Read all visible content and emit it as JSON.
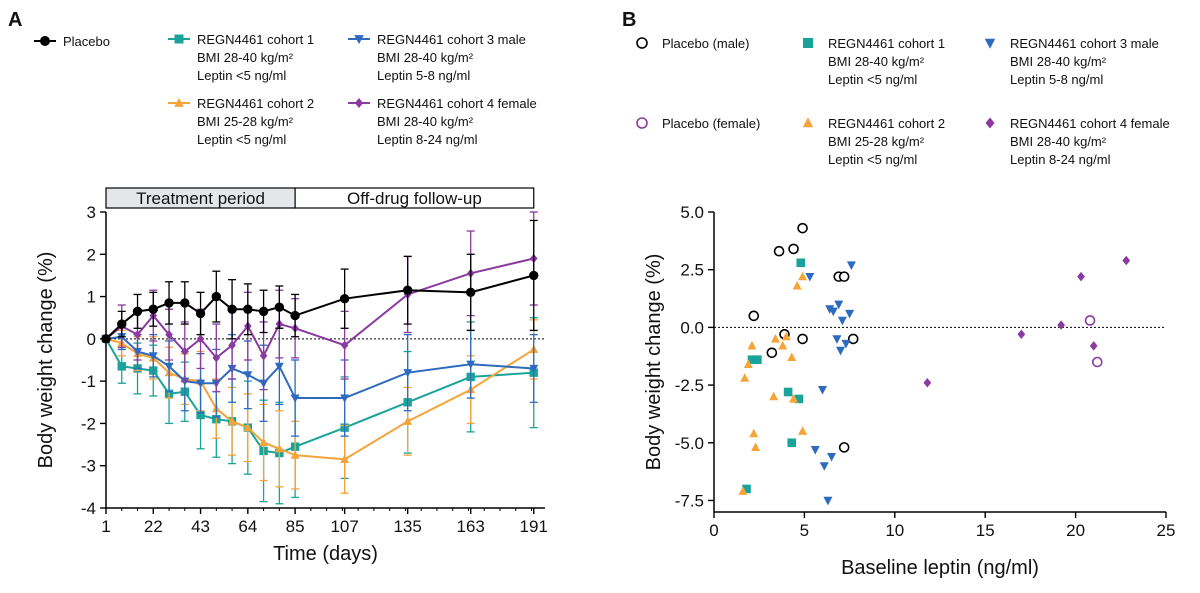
{
  "colors": {
    "placebo": "#000000",
    "cohort1": "#1aa39a",
    "cohort2": "#f5a43a",
    "cohort3": "#2e6bbf",
    "cohort4": "#8b3aa0",
    "placebo_female": "#8b3aa0"
  },
  "panel_a": {
    "label": "A",
    "legend": [
      {
        "key": "placebo",
        "lines": [
          "Placebo"
        ]
      },
      {
        "key": "cohort1",
        "lines": [
          "REGN4461 cohort 1",
          "BMI 28-40 kg/m²",
          "Leptin <5 ng/ml"
        ]
      },
      {
        "key": "cohort3",
        "lines": [
          "REGN4461 cohort 3 male",
          "BMI 28-40 kg/m²",
          "Leptin 5-8 ng/ml"
        ]
      },
      {
        "key": "cohort2",
        "lines": [
          "REGN4461 cohort 2",
          "BMI 25-28 kg/m²",
          "Leptin <5 ng/ml"
        ]
      },
      {
        "key": "cohort4",
        "lines": [
          "REGN4461 cohort 4 female",
          "BMI 28-40 kg/m²",
          "Leptin 8-24 ng/ml"
        ]
      }
    ],
    "period_labels": {
      "treatment": "Treatment period",
      "followup": "Off-drug follow-up"
    }
  },
  "panel_b": {
    "label": "B",
    "legend": [
      {
        "key": "placebo",
        "marker": "circle-open",
        "lines": [
          "Placebo (male)"
        ]
      },
      {
        "key": "cohort1",
        "marker": "square",
        "lines": [
          "REGN4461 cohort 1",
          "BMI 28-40 kg/m²",
          "Leptin <5 ng/ml"
        ]
      },
      {
        "key": "cohort3",
        "marker": "triangle-down",
        "lines": [
          "REGN4461 cohort 3 male",
          "BMI 28-40 kg/m²",
          "Leptin 5-8 ng/ml"
        ]
      },
      {
        "key": "placebo_female",
        "marker": "circle-open",
        "lines": [
          "Placebo (female)"
        ]
      },
      {
        "key": "cohort2",
        "marker": "triangle-up",
        "lines": [
          "REGN4461 cohort 2",
          "BMI 25-28 kg/m²",
          "Leptin <5 ng/ml"
        ]
      },
      {
        "key": "cohort4",
        "marker": "diamond",
        "lines": [
          "REGN4461 cohort 4 female",
          "BMI 28-40 kg/m²",
          "Leptin 8-24 ng/ml"
        ]
      }
    ]
  },
  "chart_data": [
    {
      "type": "line",
      "panel": "A",
      "title": "",
      "xlabel": "Time (days)",
      "ylabel": "Body weight change (%)",
      "xlim": [
        1,
        196
      ],
      "ylim": [
        -4,
        3
      ],
      "xticks": [
        1,
        22,
        43,
        64,
        85,
        107,
        135,
        163,
        191
      ],
      "yticks": [
        -4,
        -3,
        -2,
        -1,
        0,
        1,
        2,
        3
      ],
      "reference_line": 0,
      "periods": [
        {
          "label": "Treatment period",
          "from": 1,
          "to": 85
        },
        {
          "label": "Off-drug follow-up",
          "from": 85,
          "to": 191
        }
      ],
      "series": [
        {
          "name": "Placebo",
          "color_key": "placebo",
          "marker": "circle",
          "x": [
            1,
            8,
            15,
            22,
            29,
            36,
            43,
            50,
            57,
            64,
            71,
            78,
            85,
            107,
            135,
            163,
            191
          ],
          "y": [
            0,
            0.35,
            0.65,
            0.7,
            0.85,
            0.85,
            0.6,
            1.0,
            0.7,
            0.7,
            0.65,
            0.75,
            0.55,
            0.95,
            1.15,
            1.1,
            1.5
          ],
          "err": [
            0,
            0.3,
            0.4,
            0.4,
            0.5,
            0.5,
            0.5,
            0.6,
            0.7,
            0.6,
            0.5,
            0.5,
            0.5,
            0.7,
            0.8,
            0.9,
            1.3
          ]
        },
        {
          "name": "REGN4461 cohort 1",
          "color_key": "cohort1",
          "marker": "square",
          "x": [
            1,
            8,
            15,
            22,
            29,
            36,
            43,
            50,
            57,
            64,
            71,
            78,
            85,
            107,
            135,
            163,
            191
          ],
          "y": [
            0,
            -0.65,
            -0.7,
            -0.75,
            -1.3,
            -1.25,
            -1.8,
            -1.9,
            -1.95,
            -2.1,
            -2.65,
            -2.7,
            -2.55,
            -2.1,
            -1.5,
            -0.9,
            -0.8
          ],
          "err": [
            0,
            0.4,
            0.6,
            0.6,
            0.7,
            0.7,
            0.8,
            0.9,
            1.0,
            1.1,
            1.2,
            1.2,
            1.2,
            1.2,
            1.2,
            1.3,
            1.3
          ]
        },
        {
          "name": "REGN4461 cohort 2",
          "color_key": "cohort2",
          "marker": "triangle-up",
          "x": [
            1,
            8,
            15,
            22,
            29,
            36,
            43,
            50,
            57,
            64,
            71,
            78,
            85,
            107,
            135,
            163,
            191
          ],
          "y": [
            0,
            -0.1,
            -0.35,
            -0.45,
            -0.8,
            -0.95,
            -1.0,
            -1.65,
            -1.95,
            -2.1,
            -2.45,
            -2.6,
            -2.75,
            -2.85,
            -1.95,
            -1.2,
            -0.25
          ],
          "err": [
            0,
            0.3,
            0.4,
            0.5,
            0.6,
            0.6,
            0.7,
            0.7,
            0.8,
            0.8,
            0.9,
            0.9,
            0.8,
            0.8,
            0.8,
            0.8,
            0.7
          ]
        },
        {
          "name": "REGN4461 cohort 3 male",
          "color_key": "cohort3",
          "marker": "triangle-down",
          "x": [
            1,
            8,
            15,
            22,
            29,
            36,
            43,
            50,
            57,
            64,
            71,
            78,
            85,
            107,
            135,
            163,
            191
          ],
          "y": [
            0,
            0.05,
            -0.3,
            -0.4,
            -0.65,
            -1.0,
            -1.05,
            -1.05,
            -0.7,
            -0.85,
            -1.05,
            -0.65,
            -1.4,
            -1.4,
            -0.8,
            -0.6,
            -0.7
          ],
          "err": [
            0,
            0.3,
            0.4,
            0.5,
            0.6,
            0.7,
            0.7,
            0.8,
            0.8,
            0.8,
            0.9,
            0.9,
            0.9,
            0.9,
            0.9,
            0.8,
            0.8
          ]
        },
        {
          "name": "REGN4461 cohort 4 female",
          "color_key": "cohort4",
          "marker": "diamond",
          "x": [
            1,
            8,
            15,
            22,
            29,
            36,
            43,
            50,
            57,
            64,
            71,
            78,
            85,
            107,
            135,
            163,
            191
          ],
          "y": [
            0,
            0.3,
            0.1,
            0.55,
            0.1,
            -0.3,
            0.0,
            -0.45,
            -0.15,
            0.3,
            -0.4,
            0.35,
            0.25,
            -0.15,
            1.05,
            1.55,
            1.9
          ],
          "err": [
            0,
            0.5,
            0.6,
            0.6,
            0.6,
            0.7,
            0.7,
            0.8,
            0.8,
            0.8,
            0.8,
            0.8,
            0.7,
            0.8,
            0.9,
            1.0,
            1.1
          ]
        }
      ]
    },
    {
      "type": "scatter",
      "panel": "B",
      "title": "",
      "xlabel": "Baseline leptin (ng/ml)",
      "ylabel": "Body weight change (%)",
      "xlim": [
        0,
        25
      ],
      "ylim": [
        -8,
        5
      ],
      "xticks": [
        0,
        5,
        10,
        15,
        20,
        25
      ],
      "yticks": [
        -7.5,
        -5.0,
        -2.5,
        0.0,
        2.5,
        5.0
      ],
      "ytick_labels": [
        "-7.5",
        "-5.0",
        "-2.5",
        "0.0",
        "2.5",
        "5.0"
      ],
      "reference_line": 0,
      "series": [
        {
          "name": "Placebo (male)",
          "color_key": "placebo",
          "marker": "circle-open",
          "points": [
            [
              2.2,
              0.5
            ],
            [
              3.2,
              -1.1
            ],
            [
              3.6,
              3.3
            ],
            [
              3.9,
              -0.3
            ],
            [
              4.4,
              3.4
            ],
            [
              4.9,
              4.3
            ],
            [
              4.9,
              -0.5
            ],
            [
              6.9,
              2.2
            ],
            [
              7.2,
              2.2
            ],
            [
              7.2,
              -5.2
            ],
            [
              7.7,
              -0.5
            ]
          ]
        },
        {
          "name": "Placebo (female)",
          "color_key": "placebo_female",
          "marker": "circle-open",
          "points": [
            [
              20.8,
              0.3
            ],
            [
              21.2,
              -1.5
            ]
          ]
        },
        {
          "name": "REGN4461 cohort 1",
          "color_key": "cohort1",
          "marker": "square",
          "points": [
            [
              1.8,
              -7.0
            ],
            [
              2.1,
              -1.4
            ],
            [
              2.4,
              -1.4
            ],
            [
              4.1,
              -2.8
            ],
            [
              4.3,
              -5.0
            ],
            [
              4.7,
              -3.1
            ],
            [
              4.8,
              2.8
            ]
          ]
        },
        {
          "name": "REGN4461 cohort 2",
          "color_key": "cohort2",
          "marker": "triangle-up",
          "points": [
            [
              1.6,
              -7.1
            ],
            [
              1.7,
              -2.2
            ],
            [
              1.9,
              -1.6
            ],
            [
              2.1,
              -0.8
            ],
            [
              2.2,
              -4.6
            ],
            [
              2.3,
              -5.2
            ],
            [
              3.3,
              -3.0
            ],
            [
              3.4,
              -0.5
            ],
            [
              3.8,
              -0.8
            ],
            [
              4.0,
              -0.4
            ],
            [
              4.3,
              -1.3
            ],
            [
              4.4,
              -3.1
            ],
            [
              4.6,
              1.8
            ],
            [
              4.9,
              -4.5
            ],
            [
              4.9,
              2.2
            ]
          ]
        },
        {
          "name": "REGN4461 cohort 3 male",
          "color_key": "cohort3",
          "marker": "triangle-down",
          "points": [
            [
              5.3,
              2.2
            ],
            [
              5.6,
              -5.3
            ],
            [
              6.0,
              -2.7
            ],
            [
              6.1,
              -6.0
            ],
            [
              6.3,
              -7.5
            ],
            [
              6.4,
              0.8
            ],
            [
              6.5,
              -5.6
            ],
            [
              6.6,
              0.7
            ],
            [
              6.8,
              -0.5
            ],
            [
              6.9,
              1.0
            ],
            [
              7.0,
              -1.0
            ],
            [
              7.1,
              0.3
            ],
            [
              7.3,
              -0.7
            ],
            [
              7.5,
              0.6
            ],
            [
              7.6,
              2.7
            ]
          ]
        },
        {
          "name": "REGN4461 cohort 4 female",
          "color_key": "cohort4",
          "marker": "diamond",
          "points": [
            [
              11.8,
              -2.4
            ],
            [
              17.0,
              -0.3
            ],
            [
              19.2,
              0.1
            ],
            [
              20.3,
              2.2
            ],
            [
              21.0,
              -0.8
            ],
            [
              22.8,
              2.9
            ]
          ]
        }
      ]
    }
  ]
}
